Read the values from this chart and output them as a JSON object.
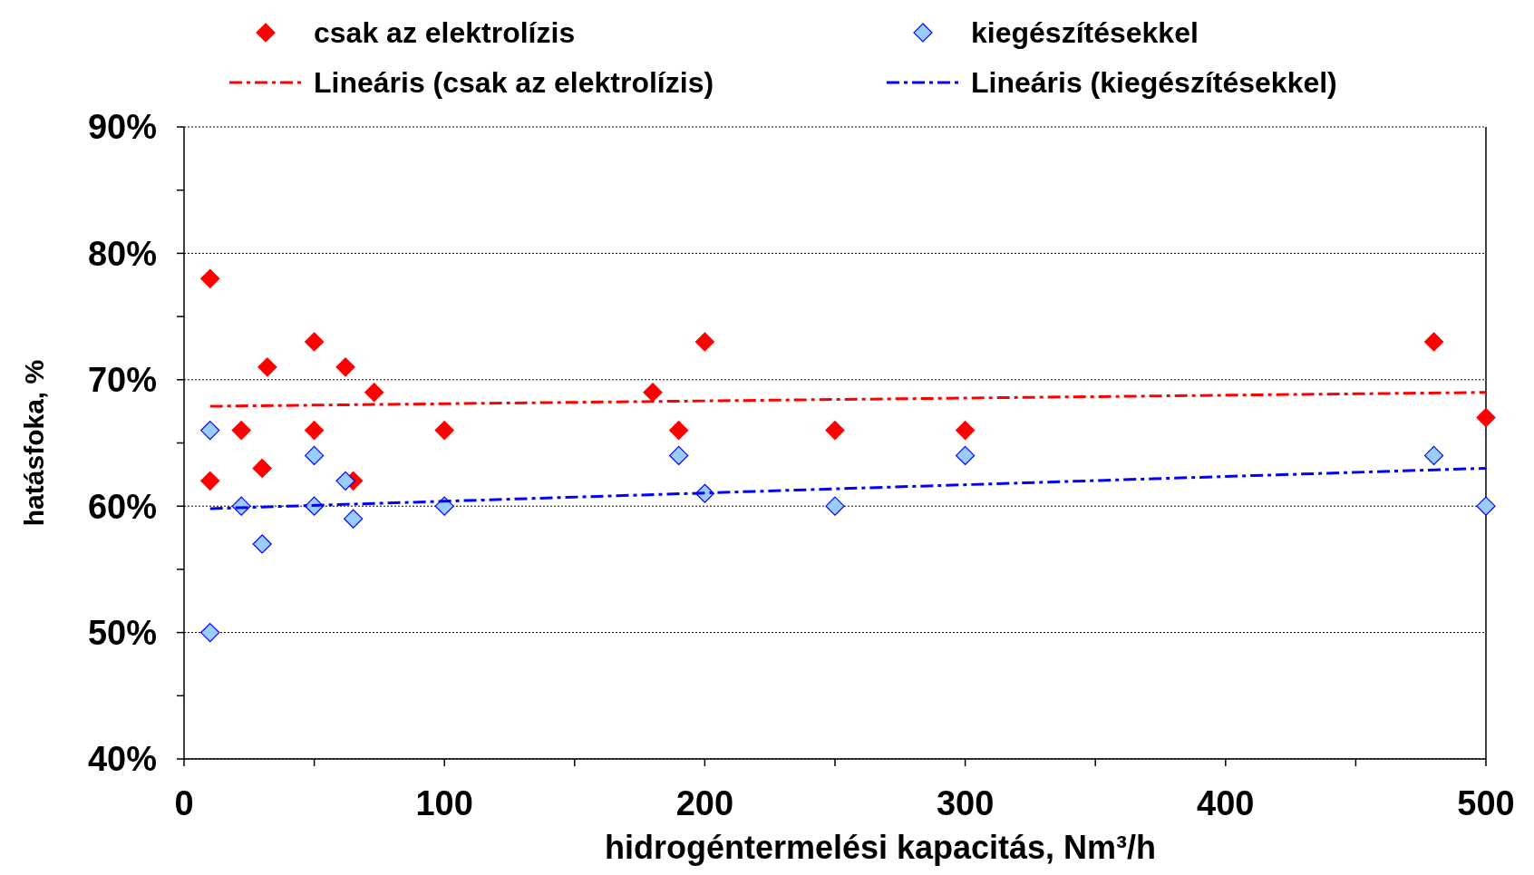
{
  "chart_data": {
    "type": "scatter",
    "xlabel": "hidrogéntermelési kapacitás, Nm³/h",
    "ylabel": "hatásfoka, %",
    "xlim": [
      0,
      500
    ],
    "xticks": [
      0,
      {
        "value": 50,
        "label": null
      },
      100,
      {
        "value": 150,
        "label": null
      },
      200,
      {
        "value": 250,
        "label": null
      },
      300,
      {
        "value": 350,
        "label": null
      },
      400,
      {
        "value": 450,
        "label": null
      },
      500
    ],
    "ylim": [
      40,
      90
    ],
    "yticks": [
      {
        "value": 40,
        "label": "40%"
      },
      {
        "value": 45,
        "label": null
      },
      {
        "value": 50,
        "label": "50%"
      },
      {
        "value": 55,
        "label": null
      },
      {
        "value": 60,
        "label": "60%"
      },
      {
        "value": 65,
        "label": null
      },
      {
        "value": 70,
        "label": "70%"
      },
      {
        "value": 75,
        "label": null
      },
      {
        "value": 80,
        "label": "80%"
      },
      {
        "value": 85,
        "label": null
      },
      {
        "value": 90,
        "label": "90%"
      }
    ],
    "grid": "y",
    "legend": "top",
    "series": [
      {
        "name": "csak az elektrolízis",
        "color": "#ff0000",
        "marker": "diamond",
        "x": [
          10,
          10,
          22,
          30,
          32,
          50,
          50,
          62,
          65,
          73,
          100,
          180,
          190,
          200,
          250,
          300,
          480,
          500
        ],
        "values": [
          78,
          62,
          66,
          63,
          71,
          73,
          66,
          71,
          62,
          69,
          66,
          69,
          66,
          73,
          66,
          66,
          73,
          67
        ]
      },
      {
        "name": "kiegészítésekkel",
        "color": "#99ccff",
        "marker": "diamond",
        "x": [
          10,
          10,
          22,
          30,
          50,
          50,
          62,
          65,
          100,
          190,
          200,
          250,
          300,
          480,
          500
        ],
        "values": [
          66,
          50,
          60,
          57,
          64,
          60,
          62,
          59,
          60,
          64,
          61,
          60,
          64,
          64,
          60
        ]
      },
      {
        "name": "Lineáris (csak az elektrolízis)",
        "type": "line",
        "color": "#ff0000",
        "line_style": "dashed",
        "marker": "none",
        "x": [
          10,
          500
        ],
        "values": [
          67.9,
          69.0
        ]
      },
      {
        "name": "Lineáris (kiegészítésekkel)",
        "type": "line",
        "color": "#0000ff",
        "line_style": "dashed",
        "marker": "none",
        "x": [
          10,
          500
        ],
        "values": [
          59.8,
          63.0
        ]
      }
    ]
  }
}
